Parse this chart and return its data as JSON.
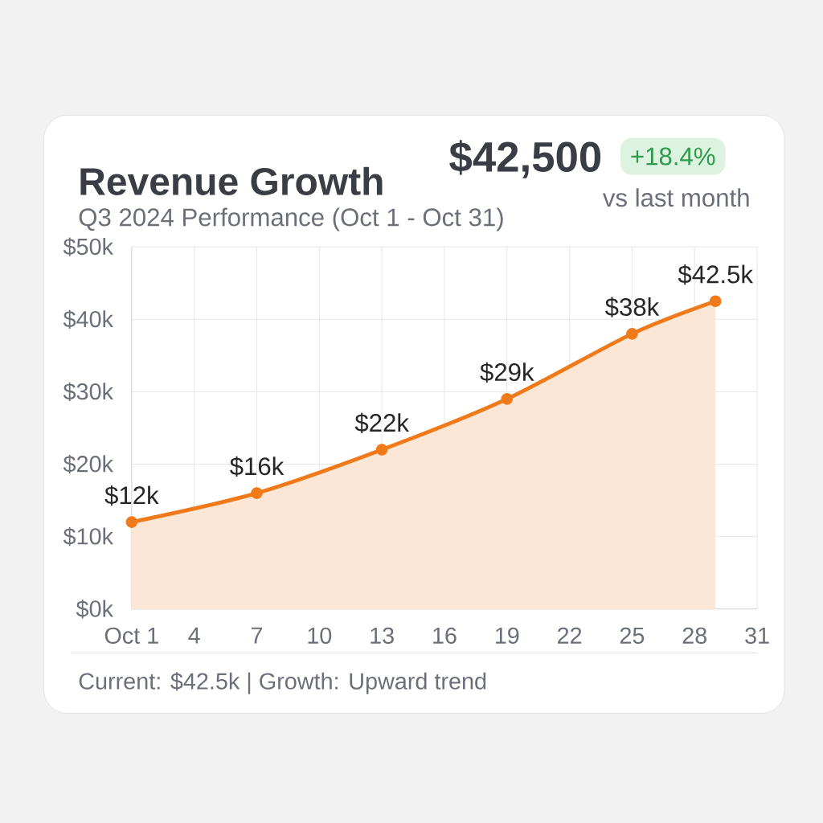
{
  "chart_data": {
    "type": "area",
    "title": "Revenue Growth",
    "subtitle": "Q3 2024 Performance (Oct 1 - Oct 31)",
    "x": [
      1,
      7,
      13,
      19,
      25,
      29
    ],
    "series": [
      {
        "color": "#f07a1a",
        "values": [
          12,
          16,
          22,
          29,
          38,
          42.5
        ],
        "value_labels": [
          "$12k",
          "$16k",
          "$22k",
          "$29k",
          "$38k",
          "$42.5k"
        ]
      }
    ],
    "xlim": [
      1,
      31
    ],
    "xticks": [
      {
        "value": 1,
        "label": "Oct 1"
      },
      4,
      7,
      10,
      13,
      16,
      19,
      22,
      25,
      28,
      31
    ],
    "ylim": [
      0,
      50
    ],
    "yticks": [
      {
        "value": 0,
        "label": "$0k"
      },
      {
        "value": 10,
        "label": "$10k"
      },
      {
        "value": 20,
        "label": "$20k"
      },
      {
        "value": 30,
        "label": "$30k"
      },
      {
        "value": 40,
        "label": "$40k"
      },
      {
        "value": 50,
        "label": "$50k"
      }
    ],
    "grid": true,
    "marker": "circle",
    "line_style": "solid",
    "annotations": [
      "$42,500",
      "+18.4%",
      "vs last month",
      "Current: $42.5k | Growth: Upward trend"
    ]
  }
}
